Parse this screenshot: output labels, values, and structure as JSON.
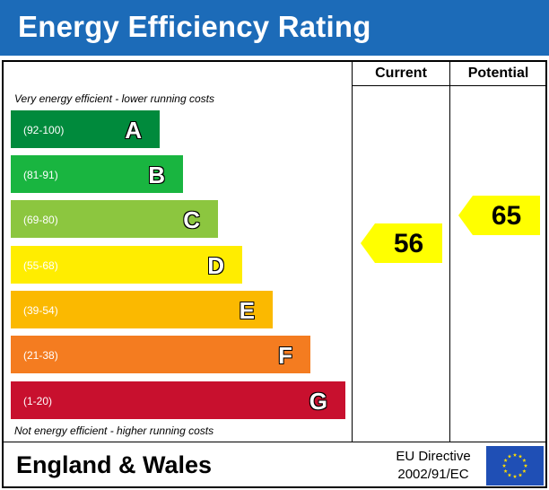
{
  "header": {
    "title": "Energy Efficiency Rating"
  },
  "columns": {
    "current": "Current",
    "potential": "Potential"
  },
  "notes": {
    "top": "Very energy efficient - lower running costs",
    "bottom": "Not energy efficient - higher running costs"
  },
  "chart_data": {
    "type": "bar",
    "title": "Energy Efficiency Rating",
    "bands": [
      {
        "letter": "A",
        "range": "(92-100)",
        "color": "#008a3c"
      },
      {
        "letter": "B",
        "range": "(81-91)",
        "color": "#19b540"
      },
      {
        "letter": "C",
        "range": "(69-80)",
        "color": "#8cc63f"
      },
      {
        "letter": "D",
        "range": "(55-68)",
        "color": "#ffed00"
      },
      {
        "letter": "E",
        "range": "(39-54)",
        "color": "#fbb900"
      },
      {
        "letter": "F",
        "range": "(21-38)",
        "color": "#f47c20"
      },
      {
        "letter": "G",
        "range": "(1-20)",
        "color": "#c8102e"
      }
    ],
    "current": {
      "value": 56,
      "band": "D",
      "color": "#ffff00"
    },
    "potential": {
      "value": 65,
      "band": "D",
      "color": "#ffff00"
    }
  },
  "footer": {
    "region": "England & Wales",
    "directive_line1": "EU Directive",
    "directive_line2": "2002/91/EC",
    "flag_icon": "eu-flag-icon"
  }
}
